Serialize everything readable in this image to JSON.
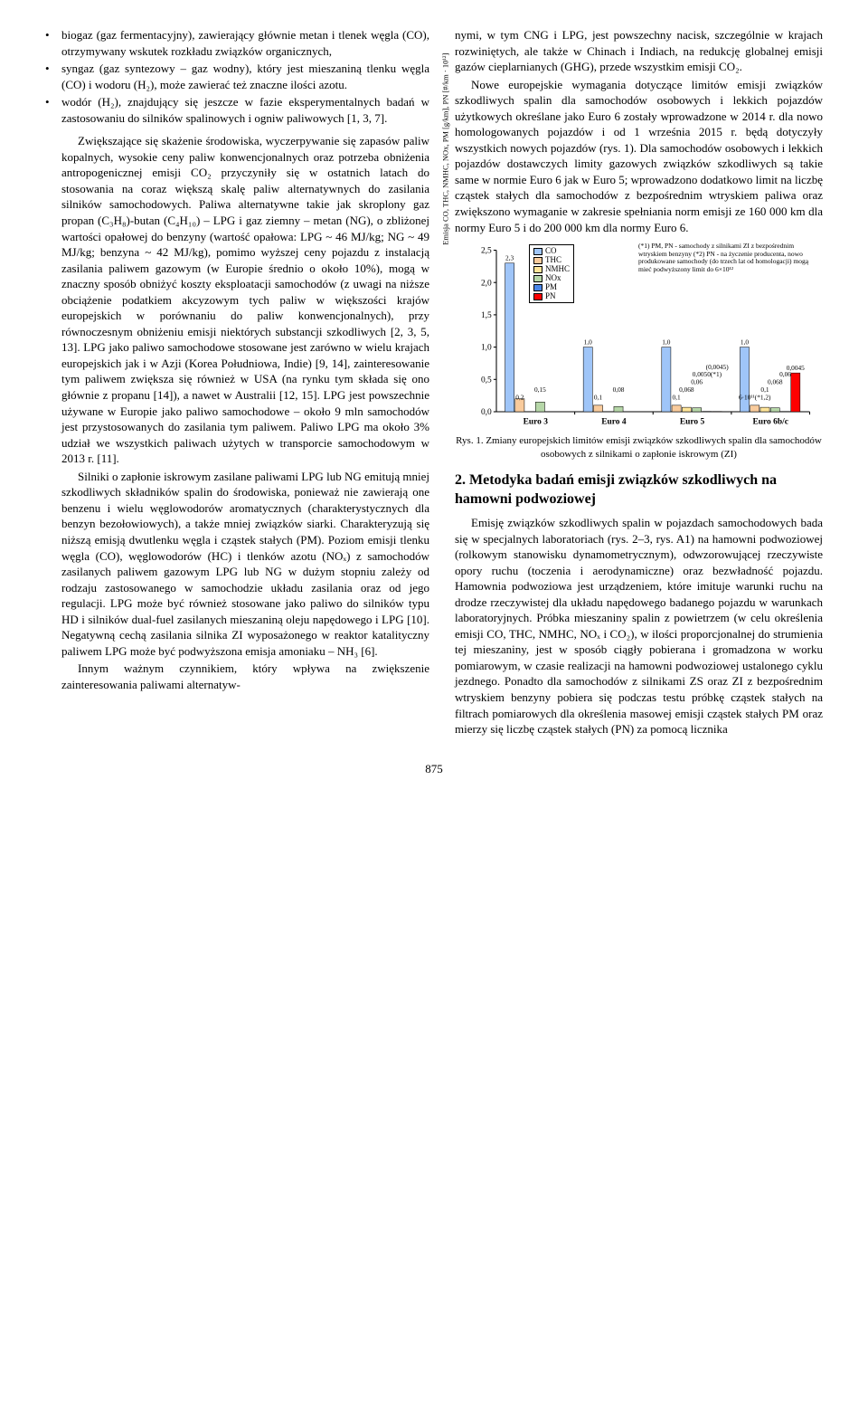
{
  "left": {
    "bullets": [
      "biogaz (gaz fermentacyjny), zawierający głównie metan i tlenek węgla (CO), otrzymywany wskutek rozkładu związków organicznych,",
      "syngaz (gaz syntezowy – gaz wodny), który jest mieszaniną tlenku węgla (CO) i wodoru (H₂), może zawierać też znaczne ilości azotu.",
      "wodór (H₂), znajdujący się jeszcze w fazie eksperymentalnych badań w zastosowaniu do silników spalinowych i ogniw paliwowych [1, 3, 7]."
    ],
    "p1": "Zwiększające się skażenie środowiska, wyczerpywanie się zapasów paliw kopalnych, wysokie ceny paliw konwencjonalnych oraz potrzeba obniżenia antropogenicznej emisji CO₂ przyczyniły się w ostatnich latach do stosowania na coraz większą skalę paliw alternatywnych do zasilania silników samochodowych. Paliwa alternatywne takie jak skroplony gaz propan (C₃H₈)-butan (C₄H₁₀) – LPG i gaz ziemny – metan (NG), o zbliżonej wartości opałowej do benzyny (wartość opałowa: LPG ~ 46 MJ/kg; NG ~ 49 MJ/kg; benzyna ~ 42 MJ/kg), pomimo wyższej ceny pojazdu z instalacją zasilania paliwem gazowym (w Europie średnio o około 10%), mogą w znaczny sposób obniżyć koszty eksploatacji samochodów (z uwagi na niższe obciążenie podatkiem akcyzowym tych paliw w większości krajów europejskich w porównaniu do paliw konwencjonalnych), przy równoczesnym obniżeniu emisji niektórych substancji szkodliwych [2, 3, 5, 13]. LPG jako paliwo samochodowe stosowane jest zarówno w wielu krajach europejskich jak i w Azji (Korea Południowa, Indie) [9, 14], zainteresowanie tym paliwem zwiększa się również w USA (na rynku tym składa się ono głównie z propanu [14]), a nawet w Australii [12, 15]. LPG jest powszechnie używane w Europie jako paliwo samochodowe – około 9 mln samochodów jest przystosowanych do zasilania tym paliwem. Paliwo LPG ma około 3% udział we wszystkich paliwach użytych w transporcie samochodowym w 2013 r. [11].",
    "p2": "Silniki o zapłonie iskrowym zasilane paliwami LPG lub NG emitują mniej szkodliwych składników spalin do środowiska, ponieważ nie zawierają one benzenu i wielu węglowodorów aromatycznych (charakterystycznych dla benzyn bezołowiowych), a także mniej związków siarki. Charakteryzują się niższą emisją dwutlenku węgla i cząstek stałych (PM). Poziom emisji  tlenku węgla (CO), węglowodorów (HC) i tlenków azotu (NOₓ) z  samochodów zasilanych paliwem gazowym LPG lub NG w dużym stopniu zależy od rodzaju zastosowanego w samochodzie układu zasilania oraz od jego regulacji. LPG może być również stosowane jako paliwo do silników typu HD i silników dual-fuel zasilanych mieszaniną oleju napędowego i LPG [10]. Negatywną cechą zasilania silnika ZI wyposażonego w reaktor katalityczny paliwem LPG może być podwyższona emisja amoniaku – NH₃ [6].",
    "p3": "Innym ważnym czynnikiem, który wpływa na zwiększenie zainteresowania paliwami alternatyw-"
  },
  "right": {
    "p1": "nymi, w tym CNG i LPG, jest powszechny nacisk, szczególnie w krajach rozwiniętych, ale także w Chinach i Indiach, na redukcję globalnej emisji gazów cieplarnianych (GHG), przede wszystkim emisji CO₂.",
    "p2": "Nowe europejskie wymagania dotyczące limitów emisji związków szkodliwych spalin dla samochodów osobowych i lekkich pojazdów użytkowych określane jako Euro 6 zostały wprowadzone w 2014 r. dla nowo homologowanych pojazdów i od 1 września 2015 r. będą dotyczyły wszystkich nowych pojazdów (rys. 1). Dla samochodów osobowych i lekkich pojazdów dostawczych limity gazowych związków szkodliwych są takie same w normie Euro 6 jak w Euro 5; wprowadzono dodatkowo limit na liczbę cząstek stałych dla samochodów z bezpośrednim wtryskiem paliwa oraz zwiększono wymaganie w zakresie spełniania norm emisji ze 160 000 km dla normy Euro 5 i do 200 000 km dla normy Euro 6.",
    "caption": "Rys. 1. Zmiany europejskich limitów emisji związków szkodliwych spalin dla samochodów osobowych z silnikami o zapłonie iskrowym (ZI)",
    "h2": "2. Metodyka badań emisji związków szkodliwych na hamowni podwoziowej",
    "p3": "Emisję związków szkodliwych spalin w pojazdach samochodowych bada się w specjalnych laboratoriach (rys. 2–3, rys. A1) na hamowni podwoziowej (rolkowym stanowisku dynamometrycznym), odwzorowującej rzeczywiste opory ruchu (toczenia i aerodynamiczne) oraz bezwładność pojazdu. Hamownia podwoziowa jest urządzeniem, które imituje warunki ruchu na drodze rzeczywistej dla układu napędowego badanego pojazdu w warunkach laboratoryjnych. Próbka mieszaniny spalin z powietrzem (w celu określenia emisji CO, THC, NMHC, NOₓ i CO₂), w ilości proporcjonalnej do strumienia tej mieszaniny, jest w sposób ciągły pobierana i gromadzona w worku pomiarowym, w czasie realizacji na hamowni podwoziowej ustalonego cyklu jezdnego. Ponadto dla samochodów z silnikami ZS oraz ZI z bezpośrednim wtryskiem benzyny pobiera się podczas testu próbkę cząstek stałych na filtrach pomiarowych dla określenia masowej emisji cząstek stałych PM oraz mierzy się liczbę cząstek stałych (PN) za pomocą licznika"
  },
  "chart": {
    "type": "bar",
    "y_label": "Emisja CO, THC, NMHC, NOx, PM [g/km], PN [#/km · 10¹²]",
    "ylim": [
      0.0,
      2.5
    ],
    "ytick_step": 0.5,
    "categories": [
      "Euro 3",
      "Euro 4",
      "Euro 5",
      "Euro 6b/c"
    ],
    "series": [
      {
        "name": "CO",
        "color": "#9fc5f8",
        "values": [
          2.3,
          1.0,
          1.0,
          1.0
        ]
      },
      {
        "name": "THC",
        "color": "#f9cb9c",
        "values": [
          0.2,
          0.1,
          0.1,
          0.1
        ]
      },
      {
        "name": "NMHC",
        "color": "#ffe599",
        "values": [
          null,
          null,
          0.068,
          0.068
        ]
      },
      {
        "name": "NOx",
        "color": "#b6d7a8",
        "values": [
          0.15,
          0.08,
          0.06,
          0.06
        ]
      },
      {
        "name": "PM",
        "color": "#4a86e8",
        "values": [
          null,
          null,
          0.005,
          0.0045
        ]
      },
      {
        "name": "PN",
        "color": "#ff0000",
        "values": [
          null,
          null,
          0.0045,
          0.6
        ]
      }
    ],
    "bar_value_labels": {
      "Euro 3": [
        "2,3",
        "0,2",
        "0,15"
      ],
      "Euro 4": [
        "1,0",
        "0,1",
        "0,08"
      ],
      "Euro 5": [
        "1,0",
        "0,1",
        "0,068",
        "0,06",
        "0,0050(*1)",
        "(0,0045)"
      ],
      "Euro 6b/c": [
        "1,0",
        "6·10¹¹(*1,2)",
        "0,1",
        "0,068",
        "0,06",
        "0,0045"
      ]
    },
    "note": "(*1) PM, PN - samochody z silnikami ZI z bezpośrednim wtryskiem benzyny\n(*2) PN - na życzenie producenta, nowo produkowane samochody (do trzech lat od homologacji) mogą mieć podwyższony limit do 6×10¹²",
    "background_color": "#ffffff",
    "grid": false,
    "font_size_axis": 9,
    "font_size_label": 7,
    "bar_border": "#000000"
  },
  "page_num": "875"
}
